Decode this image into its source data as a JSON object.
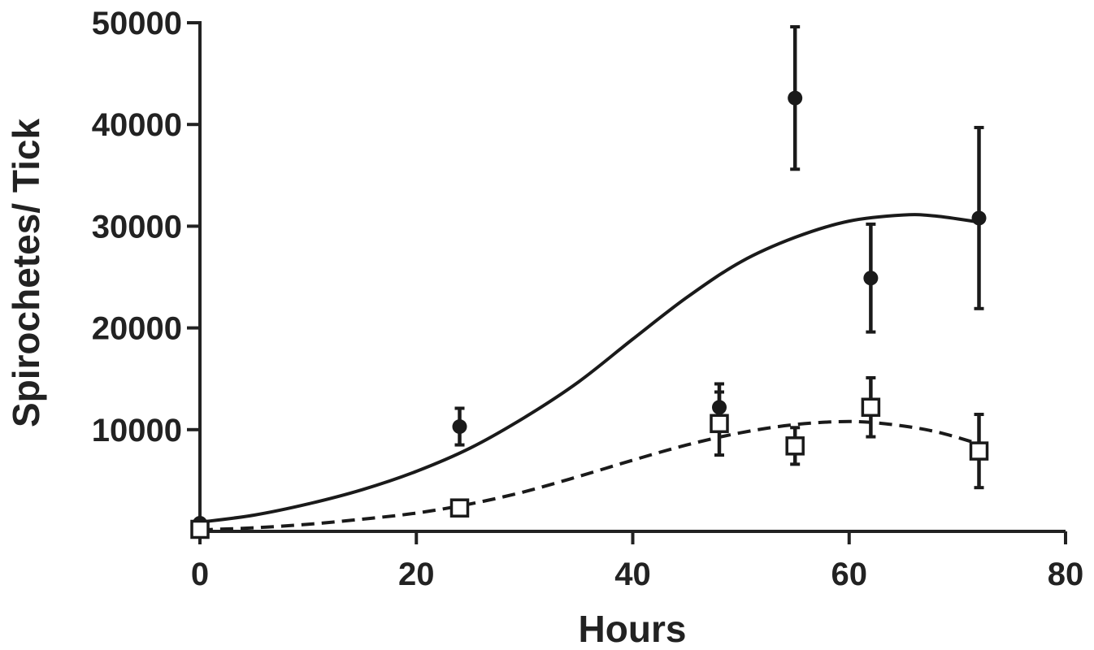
{
  "chart_data": {
    "type": "scatter",
    "title": "",
    "xlabel": "Hours",
    "ylabel": "Spirochetes/ Tick",
    "xlim": [
      0,
      80
    ],
    "ylim": [
      0,
      50000
    ],
    "xticks": [
      0,
      20,
      40,
      60,
      80
    ],
    "yticks": [
      10000,
      20000,
      30000,
      40000,
      50000
    ],
    "grid": false,
    "series": [
      {
        "marker": "filled-circle",
        "line_style": "solid",
        "points": [
          {
            "x": 0,
            "y": 800,
            "err": 0
          },
          {
            "x": 24,
            "y": 10300,
            "err": 1800
          },
          {
            "x": 48,
            "y": 12200,
            "err": 2300
          },
          {
            "x": 55,
            "y": 42600,
            "err": 7000
          },
          {
            "x": 62,
            "y": 24900,
            "err": 5300
          },
          {
            "x": 72,
            "y": 30800,
            "err": 8900
          }
        ],
        "fit": [
          {
            "x": 0,
            "y": 900
          },
          {
            "x": 5,
            "y": 1600
          },
          {
            "x": 10,
            "y": 2700
          },
          {
            "x": 15,
            "y": 4100
          },
          {
            "x": 20,
            "y": 5900
          },
          {
            "x": 25,
            "y": 8200
          },
          {
            "x": 30,
            "y": 11200
          },
          {
            "x": 35,
            "y": 14700
          },
          {
            "x": 40,
            "y": 18900
          },
          {
            "x": 45,
            "y": 23000
          },
          {
            "x": 50,
            "y": 26500
          },
          {
            "x": 55,
            "y": 28900
          },
          {
            "x": 60,
            "y": 30500
          },
          {
            "x": 65,
            "y": 31100
          },
          {
            "x": 68,
            "y": 31000
          },
          {
            "x": 72,
            "y": 30400
          }
        ]
      },
      {
        "marker": "open-square",
        "line_style": "dashed",
        "points": [
          {
            "x": 0,
            "y": 200,
            "err": 0
          },
          {
            "x": 24,
            "y": 2300,
            "err": 400
          },
          {
            "x": 48,
            "y": 10600,
            "err": 3100
          },
          {
            "x": 55,
            "y": 8400,
            "err": 1800
          },
          {
            "x": 62,
            "y": 12200,
            "err": 2900
          },
          {
            "x": 72,
            "y": 7900,
            "err": 3600
          }
        ],
        "fit": [
          {
            "x": 0,
            "y": 150
          },
          {
            "x": 5,
            "y": 350
          },
          {
            "x": 10,
            "y": 700
          },
          {
            "x": 15,
            "y": 1200
          },
          {
            "x": 20,
            "y": 1800
          },
          {
            "x": 25,
            "y": 2700
          },
          {
            "x": 30,
            "y": 3900
          },
          {
            "x": 35,
            "y": 5400
          },
          {
            "x": 40,
            "y": 7000
          },
          {
            "x": 45,
            "y": 8500
          },
          {
            "x": 50,
            "y": 9700
          },
          {
            "x": 55,
            "y": 10500
          },
          {
            "x": 60,
            "y": 10800
          },
          {
            "x": 64,
            "y": 10500
          },
          {
            "x": 68,
            "y": 9800
          },
          {
            "x": 72,
            "y": 8600
          }
        ]
      }
    ]
  }
}
